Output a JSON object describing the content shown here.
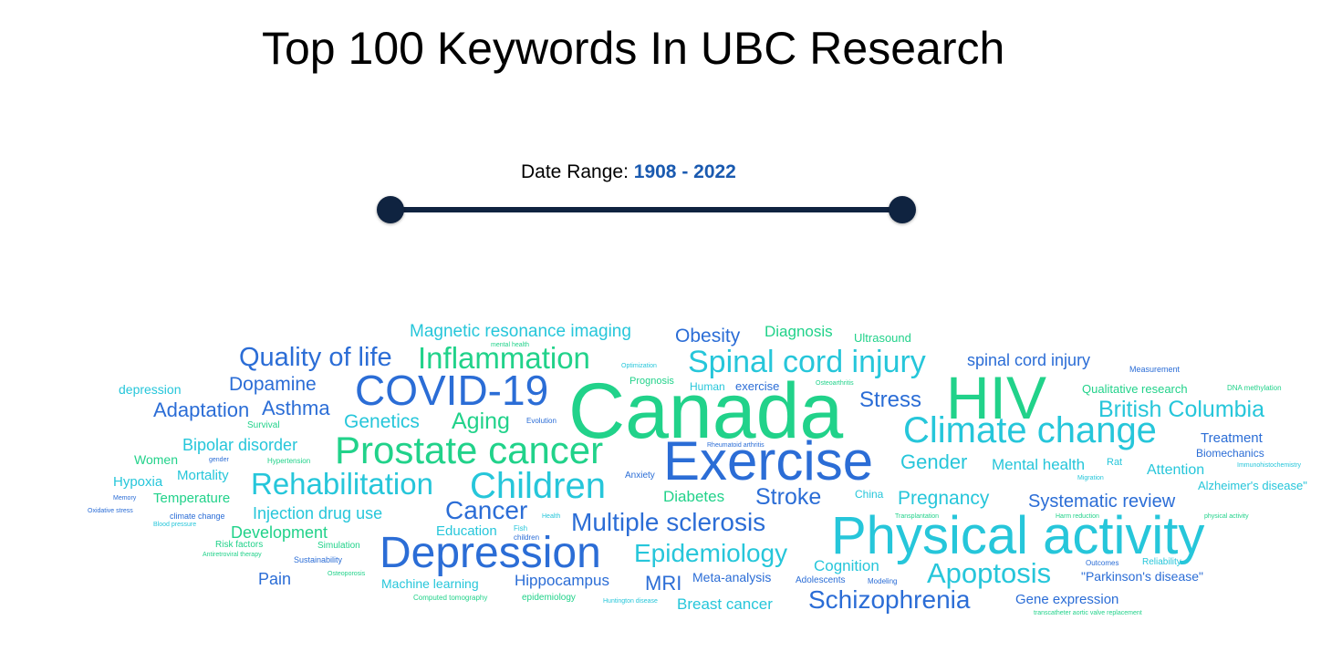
{
  "title": "Top 100 Keywords In UBC Research",
  "date_range": {
    "label": "Date Range:",
    "value": "1908 - 2022"
  },
  "colors": {
    "green": "#22d389",
    "teal": "#2bc3d6",
    "blue": "#2b6fd4",
    "handle": "#0f2340",
    "date_value": "#1a5ab0"
  },
  "word_cloud": {
    "words": [
      {
        "text": "Canada",
        "color": "#21d28a"
      },
      {
        "text": "HIV",
        "color": "#21d28a"
      },
      {
        "text": "Exercise",
        "color": "#2b6dd6"
      },
      {
        "text": "Physical activity",
        "color": "#26c6da"
      },
      {
        "text": "COVID-19",
        "color": "#2b6dd6"
      },
      {
        "text": "Depression",
        "color": "#2b6dd6"
      },
      {
        "text": "Prostate cancer",
        "color": "#21d28a"
      },
      {
        "text": "Climate change",
        "color": "#26c6da"
      },
      {
        "text": "Children",
        "color": "#26c6da"
      },
      {
        "text": "Spinal cord injury",
        "color": "#26c6da"
      },
      {
        "text": "Rehabilitation",
        "color": "#26c6da"
      },
      {
        "text": "Inflammation",
        "color": "#21d28a"
      },
      {
        "text": "Schizophrenia",
        "color": "#2b6dd6"
      },
      {
        "text": "Apoptosis",
        "color": "#26c6da"
      },
      {
        "text": "Quality of life",
        "color": "#2b6dd6"
      },
      {
        "text": "Multiple sclerosis",
        "color": "#2b6dd6"
      },
      {
        "text": "Epidemiology",
        "color": "#26c6da"
      },
      {
        "text": "British Columbia",
        "color": "#26c6da"
      },
      {
        "text": "Cancer",
        "color": "#2b6dd6"
      },
      {
        "text": "Stroke",
        "color": "#2b6dd6"
      },
      {
        "text": "Stress",
        "color": "#2b6dd6"
      },
      {
        "text": "Aging",
        "color": "#21d28a"
      },
      {
        "text": "Gender",
        "color": "#26c6da"
      },
      {
        "text": "Magnetic resonance imaging",
        "color": "#26c6da"
      },
      {
        "text": "Obesity",
        "color": "#2b6dd6"
      },
      {
        "text": "Dopamine",
        "color": "#2b6dd6"
      },
      {
        "text": "Adaptation",
        "color": "#2b6dd6"
      },
      {
        "text": "Asthma",
        "color": "#2b6dd6"
      },
      {
        "text": "Genetics",
        "color": "#26c6da"
      },
      {
        "text": "Pregnancy",
        "color": "#26c6da"
      },
      {
        "text": "Systematic review",
        "color": "#2b6dd6"
      },
      {
        "text": "spinal cord injury",
        "color": "#2b6dd6"
      },
      {
        "text": "MRI",
        "color": "#2b6dd6"
      },
      {
        "text": "Bipolar disorder",
        "color": "#26c6da"
      },
      {
        "text": "Injection drug use",
        "color": "#26c6da"
      },
      {
        "text": "Development",
        "color": "#21d28a"
      },
      {
        "text": "Mental health",
        "color": "#26c6da"
      },
      {
        "text": "Diagnosis",
        "color": "#21d28a"
      },
      {
        "text": "Diabetes",
        "color": "#21d28a"
      },
      {
        "text": "Cognition",
        "color": "#26c6da"
      },
      {
        "text": "Pain",
        "color": "#2b6dd6"
      },
      {
        "text": "Hippocampus",
        "color": "#2b6dd6"
      },
      {
        "text": "Breast cancer",
        "color": "#26c6da"
      },
      {
        "text": "Gene expression",
        "color": "#2b6dd6"
      },
      {
        "text": "Attention",
        "color": "#26c6da"
      },
      {
        "text": "Treatment",
        "color": "#2b6dd6"
      },
      {
        "text": "Hypoxia",
        "color": "#26c6da"
      },
      {
        "text": "Mortality",
        "color": "#26c6da"
      },
      {
        "text": "Temperature",
        "color": "#21d28a"
      },
      {
        "text": "Education",
        "color": "#26c6da"
      },
      {
        "text": "Machine learning",
        "color": "#26c6da"
      },
      {
        "text": "Meta-analysis",
        "color": "#2b6dd6"
      },
      {
        "text": "\"Parkinson's disease\"",
        "color": "#2b6dd6"
      },
      {
        "text": "depression",
        "color": "#26c6da"
      },
      {
        "text": "Women",
        "color": "#21d28a"
      },
      {
        "text": "Ultrasound",
        "color": "#21d28a"
      },
      {
        "text": "Qualitative research",
        "color": "#21d28a"
      },
      {
        "text": "Alzheimer's disease\"",
        "color": "#26c6da"
      },
      {
        "text": "exercise",
        "color": "#2b6dd6"
      },
      {
        "text": "Human",
        "color": "#26c6da"
      },
      {
        "text": "China",
        "color": "#26c6da"
      },
      {
        "text": "Biomechanics",
        "color": "#2b6dd6"
      },
      {
        "text": "Prognosis",
        "color": "#21d28a"
      },
      {
        "text": "Rat",
        "color": "#26c6da"
      },
      {
        "text": "Measurement",
        "color": "#2b6dd6"
      },
      {
        "text": "Risk factors",
        "color": "#21d28a"
      },
      {
        "text": "Simulation",
        "color": "#21d28a"
      },
      {
        "text": "Adolescents",
        "color": "#2b6dd6"
      },
      {
        "text": "Reliability",
        "color": "#26c6da"
      },
      {
        "text": "Survival",
        "color": "#21d28a"
      },
      {
        "text": "epidemiology",
        "color": "#21d28a"
      },
      {
        "text": "Anxiety",
        "color": "#2b6dd6"
      },
      {
        "text": "Evolution",
        "color": "#2b6dd6"
      },
      {
        "text": "climate change",
        "color": "#2b6dd6"
      },
      {
        "text": "children",
        "color": "#2b6dd6"
      },
      {
        "text": "Sustainability",
        "color": "#2b6dd6"
      },
      {
        "text": "Modeling",
        "color": "#2b6dd6"
      },
      {
        "text": "Outcomes",
        "color": "#2b6dd6"
      },
      {
        "text": "Fish",
        "color": "#26c6da"
      },
      {
        "text": "DNA methylation",
        "color": "#21d28a"
      },
      {
        "text": "Computed tomography",
        "color": "#21d28a"
      },
      {
        "text": "mental health",
        "color": "#21d28a"
      },
      {
        "text": "Optimization",
        "color": "#26c6da"
      },
      {
        "text": "Osteoarthritis",
        "color": "#21d28a"
      },
      {
        "text": "Rheumatoid arthritis",
        "color": "#2b6dd6"
      },
      {
        "text": "Immunohistochemistry",
        "color": "#26c6da"
      },
      {
        "text": "Migration",
        "color": "#26c6da"
      },
      {
        "text": "Memory",
        "color": "#2b6dd6"
      },
      {
        "text": "Oxidative stress",
        "color": "#2b6dd6"
      },
      {
        "text": "gender",
        "color": "#2b6dd6"
      },
      {
        "text": "Hypertension",
        "color": "#21d28a"
      },
      {
        "text": "Blood pressure",
        "color": "#26c6da"
      },
      {
        "text": "Antiretroviral therapy",
        "color": "#21d28a"
      },
      {
        "text": "Osteoporosis",
        "color": "#21d28a"
      },
      {
        "text": "Health",
        "color": "#26c6da"
      },
      {
        "text": "Huntington disease",
        "color": "#26c6da"
      },
      {
        "text": "Transplantation",
        "color": "#21d28a"
      },
      {
        "text": "Harm reduction",
        "color": "#21d28a"
      },
      {
        "text": "physical activity",
        "color": "#21d28a"
      },
      {
        "text": "transcatheter aortic valve replacement",
        "color": "#21d28a"
      }
    ]
  }
}
